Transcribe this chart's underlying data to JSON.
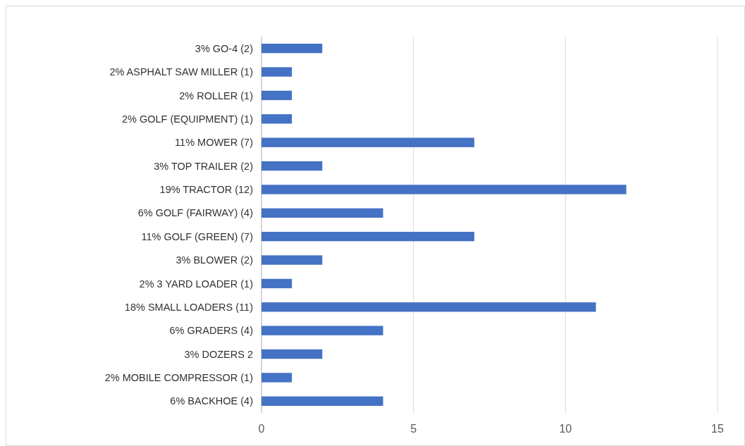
{
  "chart_data": {
    "type": "bar",
    "orientation": "horizontal",
    "categories": [
      "3% GO-4 (2)",
      "2% ASPHALT SAW MILLER (1)",
      "2% ROLLER (1)",
      "2% GOLF (EQUIPMENT) (1)",
      "11% MOWER (7)",
      "3% TOP TRAILER (2)",
      "19% TRACTOR (12)",
      "6% GOLF (FAIRWAY) (4)",
      "11% GOLF (GREEN) (7)",
      "3% BLOWER (2)",
      "2% 3 YARD LOADER (1)",
      "18% SMALL LOADERS (11)",
      "6% GRADERS (4)",
      "3% DOZERS 2",
      "2% MOBILE COMPRESSOR (1)",
      "6% BACKHOE (4)"
    ],
    "values": [
      2,
      1,
      1,
      1,
      7,
      2,
      12,
      4,
      7,
      2,
      1,
      11,
      4,
      2,
      1,
      4
    ],
    "color": "#4472c4",
    "xlim": [
      0,
      15
    ],
    "xticks": [
      0,
      5,
      10,
      15
    ],
    "grid": "x"
  }
}
